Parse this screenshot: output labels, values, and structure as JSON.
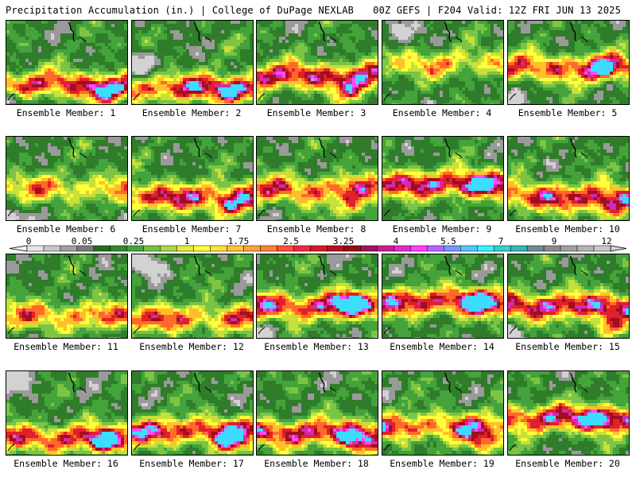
{
  "header": {
    "title": "Precipitation Accumulation (in.) | College of DuPage NEXLAB",
    "valid": "00Z GEFS | F204 Valid: 12Z FRI JUN 13 2025"
  },
  "panels": [
    {
      "label": "Ensemble Member: 1"
    },
    {
      "label": "Ensemble Member: 2"
    },
    {
      "label": "Ensemble Member: 3"
    },
    {
      "label": "Ensemble Member: 4"
    },
    {
      "label": "Ensemble Member: 5"
    },
    {
      "label": "Ensemble Member: 6"
    },
    {
      "label": "Ensemble Member: 7"
    },
    {
      "label": "Ensemble Member: 8"
    },
    {
      "label": "Ensemble Member: 9"
    },
    {
      "label": "Ensemble Member: 10"
    },
    {
      "label": "Ensemble Member: 11"
    },
    {
      "label": "Ensemble Member: 12"
    },
    {
      "label": "Ensemble Member: 13"
    },
    {
      "label": "Ensemble Member: 14"
    },
    {
      "label": "Ensemble Member: 15"
    },
    {
      "label": "Ensemble Member: 16"
    },
    {
      "label": "Ensemble Member: 17"
    },
    {
      "label": "Ensemble Member: 18"
    },
    {
      "label": "Ensemble Member: 19"
    },
    {
      "label": "Ensemble Member: 20"
    }
  ],
  "colorbar": {
    "tick_labels": [
      "0",
      "0.05",
      "0.25",
      "1",
      "1.75",
      "2.5",
      "3.25",
      "4",
      "5.5",
      "7",
      "9",
      "12"
    ],
    "colors": [
      "#e6e6e6",
      "#c8c8c8",
      "#a0a0a0",
      "#7a7a7a",
      "#1e6e1e",
      "#2f8a2f",
      "#44a33a",
      "#74c043",
      "#a8d848",
      "#e3f03a",
      "#ffff3a",
      "#ffe13a",
      "#ffc33a",
      "#ffa23a",
      "#ff803a",
      "#ff503a",
      "#f0283a",
      "#d21a28",
      "#b4101e",
      "#960a14",
      "#a0145a",
      "#c81e8c",
      "#e628c8",
      "#ff3cff",
      "#b464ff",
      "#7896ff",
      "#50c8ff",
      "#3cf0ff",
      "#32d2c8",
      "#3cb4b4",
      "#6e8c8c",
      "#8c8c8c",
      "#a0a0a0",
      "#b4b4b4",
      "#c8c8c8"
    ]
  },
  "palette": {
    "dark_green": "#2f7d2a",
    "green": "#44a33a",
    "light_green": "#7cc444",
    "yellow_green": "#c7e03a",
    "yellow": "#ffff3a",
    "orange": "#ffbf2a",
    "red_orange": "#ff6a2a",
    "red": "#e0202a",
    "dark_red": "#a00f1e",
    "magenta": "#d22ab4",
    "pink": "#ff4cff",
    "cyan": "#3cdcff",
    "gray": "#9a9a9a",
    "light_gray": "#d2d2d2"
  }
}
